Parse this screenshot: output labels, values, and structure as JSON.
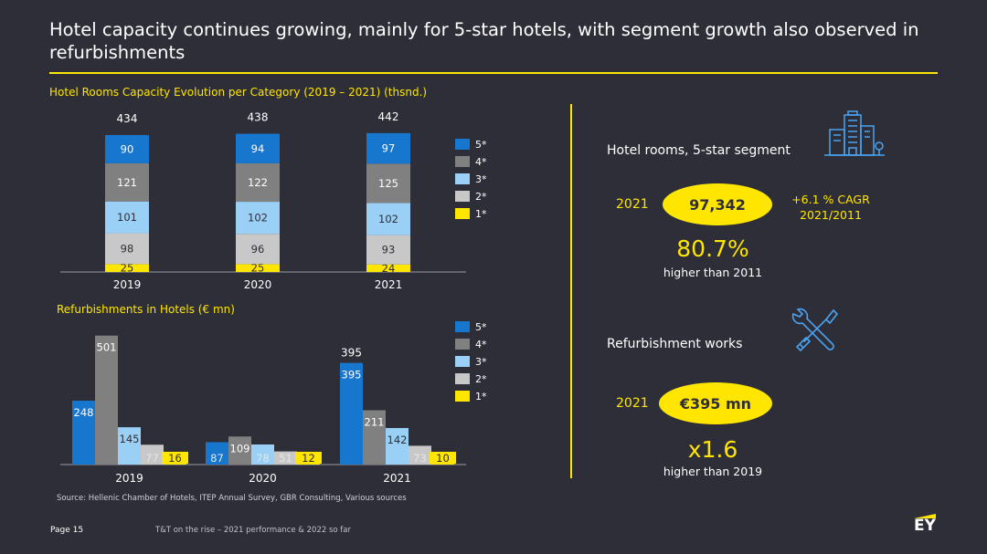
{
  "title": "Hotel capacity continues growing, mainly for 5-star hotels, with segment growth also observed in refurbishments",
  "colors": {
    "accent": "#ffe600",
    "background": "#2e2e38",
    "five_star": "#1777cf",
    "four_star": "#808080",
    "three_star": "#9ad0f5",
    "two_star": "#c8c8c8",
    "one_star": "#ffe600"
  },
  "chart_data": [
    {
      "type": "bar",
      "stacked": true,
      "title": "Hotel Rooms Capacity Evolution per Category (2019 – 2021) (thsnd.)",
      "categories": [
        "2019",
        "2020",
        "2021"
      ],
      "totals": [
        434,
        438,
        442
      ],
      "series": [
        {
          "name": "1*",
          "values": [
            25,
            25,
            24
          ],
          "color": "#ffe600"
        },
        {
          "name": "2*",
          "values": [
            98,
            96,
            93
          ],
          "color": "#c8c8c8"
        },
        {
          "name": "3*",
          "values": [
            101,
            102,
            102
          ],
          "color": "#9ad0f5"
        },
        {
          "name": "4*",
          "values": [
            121,
            122,
            125
          ],
          "color": "#808080"
        },
        {
          "name": "5*",
          "values": [
            90,
            94,
            97
          ],
          "color": "#1777cf"
        }
      ],
      "legend_order": [
        "5*",
        "4*",
        "3*",
        "2*",
        "1*"
      ],
      "legend_position": "right"
    },
    {
      "type": "bar",
      "stacked": false,
      "title": "Refurbishments in Hotels (€ mn)",
      "categories": [
        "2019",
        "2020",
        "2021"
      ],
      "series": [
        {
          "name": "5*",
          "values": [
            248,
            87,
            395
          ],
          "color": "#1777cf"
        },
        {
          "name": "4*",
          "values": [
            501,
            109,
            211
          ],
          "color": "#808080"
        },
        {
          "name": "3*",
          "values": [
            145,
            78,
            142
          ],
          "color": "#9ad0f5"
        },
        {
          "name": "2*",
          "values": [
            77,
            51,
            73
          ],
          "color": "#c8c8c8"
        },
        {
          "name": "1*",
          "values": [
            16,
            12,
            10
          ],
          "color": "#ffe600"
        }
      ],
      "annotations": [
        {
          "category": "2021",
          "text": "395"
        }
      ],
      "legend_order": [
        "5*",
        "4*",
        "3*",
        "2*",
        "1*"
      ],
      "legend_position": "right"
    }
  ],
  "kpi": {
    "rooms": {
      "title": "Hotel rooms, 5-star segment",
      "icon": "hotel-building-icon",
      "year": "2021",
      "value": "97,342",
      "cagr_line1": "+6.1 % CAGR",
      "cagr_line2": "2021/2011",
      "big": "80.7%",
      "small": "higher than 2011"
    },
    "refurb": {
      "title": "Refurbishment works",
      "icon": "tools-icon",
      "year": "2021",
      "value": "€395 mn",
      "big": "x1.6",
      "small": "higher than 2019"
    }
  },
  "source": "Source: Hellenic Chamber of Hotels, ITEP Annual Survey, GBR Consulting, Various sources",
  "footer": {
    "page": "Page 15",
    "text": "T&T on the rise – 2021 performance & 2022 so far",
    "logo": "EY"
  }
}
